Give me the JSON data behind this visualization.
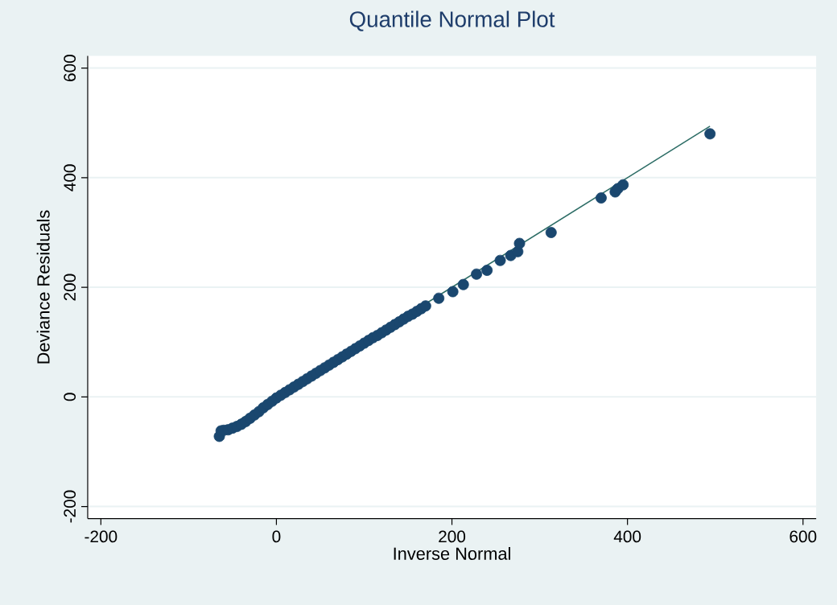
{
  "chart_data": {
    "type": "scatter",
    "title": "Quantile Normal Plot",
    "xlabel": "Inverse Normal",
    "ylabel": "Deviance Residuals",
    "xlim": [
      -215,
      615
    ],
    "ylim": [
      -222,
      622
    ],
    "xticks": [
      -200,
      0,
      200,
      400,
      600
    ],
    "yticks": [
      -200,
      0,
      200,
      400,
      600
    ],
    "grid": "y",
    "series": [
      {
        "marker": "circle",
        "color": "#1a476f",
        "x": [
          -65,
          -63,
          -60,
          -55,
          -50,
          -45,
          -40,
          -35,
          -30,
          -25,
          -20,
          -15,
          -10,
          -5,
          0,
          5,
          10,
          15,
          20,
          25,
          30,
          35,
          40,
          45,
          50,
          55,
          60,
          65,
          70,
          75,
          80,
          85,
          90,
          95,
          100,
          105,
          110,
          115,
          120,
          125,
          130,
          135,
          140,
          145,
          150,
          155,
          160,
          165,
          170,
          185,
          201,
          213,
          228,
          240,
          255,
          267,
          275,
          277,
          313,
          370,
          386,
          389,
          395,
          494
        ],
        "values": [
          -72,
          -62,
          -61,
          -60,
          -57,
          -54,
          -50,
          -45,
          -39,
          -33,
          -27,
          -20,
          -14,
          -8,
          -2,
          3,
          8,
          13,
          18,
          23,
          28,
          33,
          38,
          43,
          48,
          53,
          58,
          63,
          68,
          73,
          78,
          83,
          88,
          93,
          98,
          103,
          108,
          112,
          117,
          122,
          127,
          132,
          137,
          142,
          147,
          151,
          156,
          161,
          166,
          180,
          192,
          205,
          224,
          231,
          249,
          258,
          265,
          280,
          300,
          363,
          374,
          380,
          387,
          480
        ]
      },
      {
        "type": "line",
        "marker": "none",
        "color": "#2d6d66",
        "x": [
          -65,
          494
        ],
        "values": [
          -65,
          494
        ]
      }
    ]
  }
}
